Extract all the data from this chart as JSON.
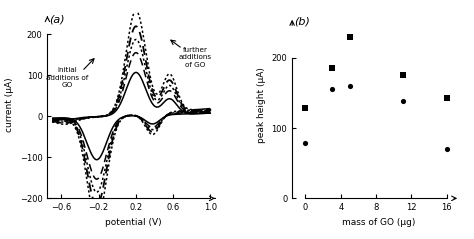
{
  "panel_a_label": "(a)",
  "panel_b_label": "(b)",
  "cv_xlim": [
    -0.75,
    1.1
  ],
  "cv_ylim": [
    -200,
    255
  ],
  "cv_xticks": [
    -0.6,
    -0.2,
    0.2,
    0.6,
    1.0
  ],
  "cv_yticks": [
    -200,
    -100,
    0,
    100,
    200
  ],
  "cv_xlabel": "potential (V)",
  "cv_ylabel": "current (μA)",
  "scatter_xlim": [
    -1.5,
    18
  ],
  "scatter_ylim": [
    0,
    265
  ],
  "scatter_xticks": [
    0,
    4,
    8,
    12,
    16
  ],
  "scatter_yticks": [
    0,
    100,
    200
  ],
  "scatter_xlabel": "mass of GO (μg)",
  "scatter_ylabel": "peak height (μA)",
  "squares_x": [
    0,
    3,
    5,
    11,
    16
  ],
  "squares_y": [
    128,
    185,
    230,
    175,
    142
  ],
  "circles_x": [
    0,
    3,
    5,
    11,
    16
  ],
  "circles_y": [
    78,
    155,
    160,
    138,
    70
  ],
  "annotation1_text": "initial\nadditions of\nGO",
  "annotation2_text": "further\nadditions\nof GO",
  "line_color": "black",
  "bg_color": "white",
  "line_configs": [
    [
      1.0,
      "solid",
      1.1
    ],
    [
      1.45,
      "dashed",
      1.1
    ],
    [
      1.75,
      "dotted",
      1.1
    ],
    [
      2.05,
      "dashed",
      1.3
    ],
    [
      2.4,
      "dotted",
      1.1
    ]
  ]
}
